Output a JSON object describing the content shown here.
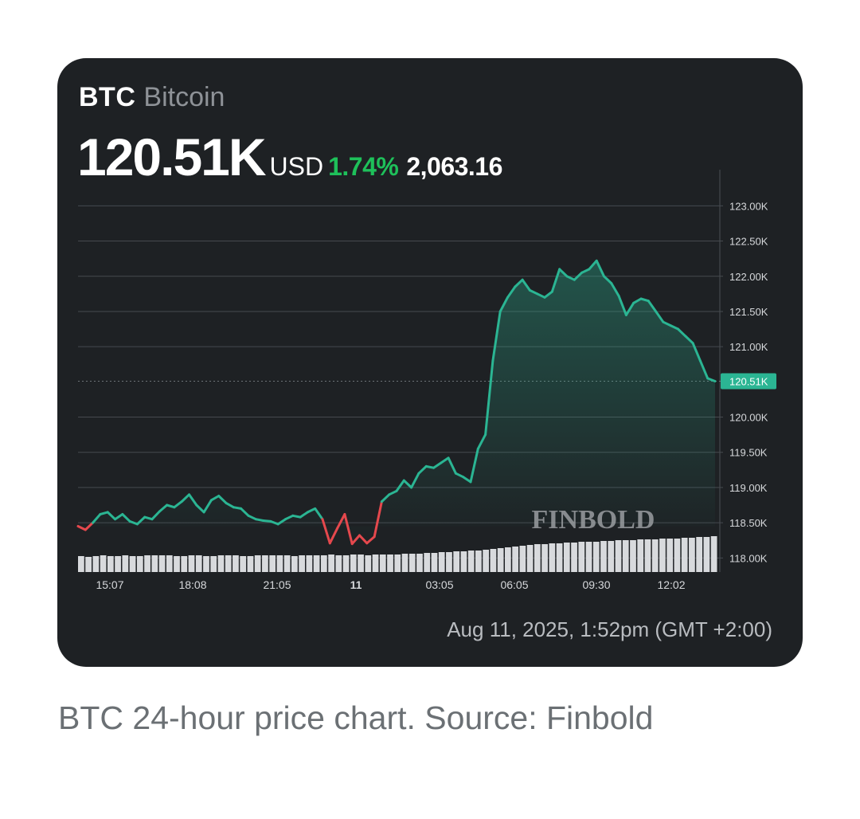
{
  "header": {
    "symbol": "BTC",
    "name": "Bitcoin",
    "price": "120.51K",
    "currency": "USD",
    "change_percent": "1.74%",
    "change_value": "2,063.16"
  },
  "watermark": "FINBOLD",
  "timestamp": "Aug 11, 2025, 1:52pm (GMT +2:00)",
  "caption": "BTC 24-hour price chart. Source: Finbold",
  "colors": {
    "up": "#2bb593",
    "down": "#e5484d",
    "change_text": "#1ec05a",
    "card_bg": "#1e2124",
    "price_badge": "#2bb593"
  },
  "chart_data": {
    "type": "line",
    "x_tick_labels": [
      "15:07",
      "18:08",
      "21:05",
      "11",
      "03:05",
      "06:05",
      "09:30",
      "12:02"
    ],
    "y_tick_labels": [
      "123.00K",
      "122.50K",
      "122.00K",
      "121.50K",
      "121.00K",
      "120.51K",
      "120.00K",
      "119.50K",
      "119.00K",
      "118.50K",
      "118.00K"
    ],
    "ylim": [
      117.8,
      123.4
    ],
    "reference_price": 118.45,
    "current_price": 120.51,
    "current_label": "120.51K",
    "series": [
      {
        "values": [
          118.45,
          118.4,
          118.5,
          118.62,
          118.65,
          118.55,
          118.62,
          118.52,
          118.48,
          118.58,
          118.55,
          118.66,
          118.75,
          118.72,
          118.8,
          118.9,
          118.75,
          118.65,
          118.82,
          118.88,
          118.78,
          118.72,
          118.7,
          118.6,
          118.55,
          118.53,
          118.52,
          118.48,
          118.55,
          118.6,
          118.58,
          118.65,
          118.7,
          118.55,
          118.21,
          118.42,
          118.62,
          118.2,
          118.32,
          118.21,
          118.3,
          118.8,
          118.9,
          118.95,
          119.1,
          119.0,
          119.2,
          119.3,
          119.28,
          119.35,
          119.42,
          119.2,
          119.15,
          119.08,
          119.55,
          119.75,
          120.8,
          121.5,
          121.7,
          121.85,
          121.95,
          121.8,
          121.75,
          121.7,
          121.78,
          122.1,
          122.0,
          121.95,
          122.05,
          122.1,
          122.22,
          122.0,
          121.9,
          121.72,
          121.45,
          121.62,
          121.68,
          121.65,
          121.5,
          121.35,
          121.3,
          121.25,
          121.15,
          121.05,
          120.8,
          120.55,
          120.51
        ]
      }
    ],
    "volume": [
      20,
      19,
      20,
      21,
      20,
      20,
      21,
      20,
      20,
      21,
      21,
      21,
      21,
      20,
      20,
      21,
      21,
      20,
      20,
      21,
      21,
      21,
      20,
      20,
      21,
      21,
      21,
      21,
      21,
      20,
      21,
      21,
      21,
      21,
      22,
      21,
      21,
      22,
      22,
      21,
      22,
      22,
      22,
      22,
      23,
      23,
      23,
      24,
      24,
      25,
      25,
      26,
      26,
      27,
      27,
      28,
      29,
      30,
      31,
      32,
      33,
      34,
      35,
      35,
      36,
      36,
      37,
      37,
      38,
      38,
      38,
      39,
      39,
      40,
      40,
      40,
      41,
      41,
      41,
      42,
      42,
      42,
      43,
      43,
      44,
      44,
      45
    ]
  }
}
